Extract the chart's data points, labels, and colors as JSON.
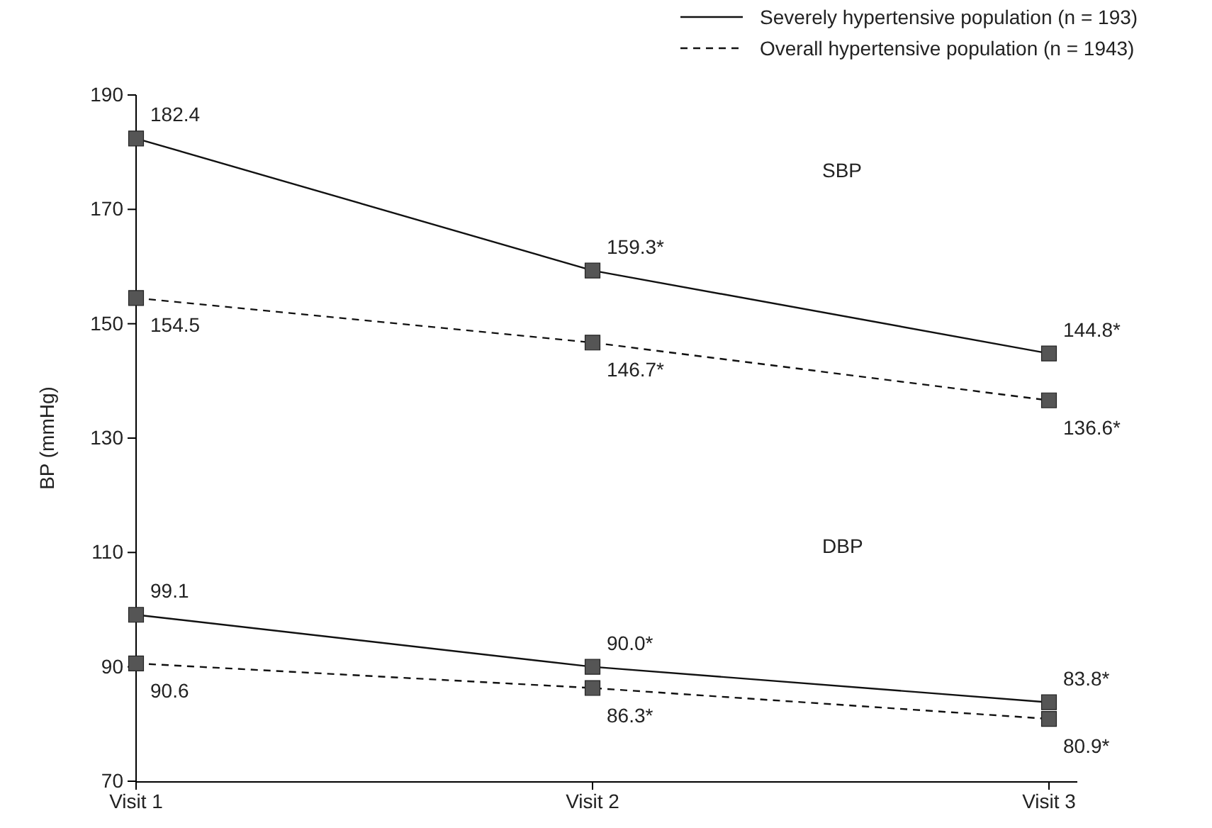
{
  "chart_data": {
    "type": "line",
    "ylabel": "BP (mmHg)",
    "categories": [
      "Visit 1",
      "Visit 2",
      "Visit 3"
    ],
    "ylim": [
      70,
      190
    ],
    "yticks": [
      70,
      90,
      110,
      130,
      150,
      170,
      190
    ],
    "series": [
      {
        "name": "Severely hypertensive population (n = 193)",
        "color": "#555555",
        "line_style": "solid",
        "values": [
          182.4,
          159.3,
          144.8
        ],
        "value_labels": [
          "182.4",
          "159.3*",
          "144.8*"
        ]
      },
      {
        "name": "Overall hypertensive population (n = 1943)",
        "color": "#555555",
        "line_style": "dashed",
        "values": [
          154.5,
          146.7,
          136.6
        ],
        "value_labels": [
          "154.5",
          "146.7*",
          "136.6*"
        ]
      },
      {
        "color": "#555555",
        "line_style": "solid",
        "values": [
          99.1,
          90.0,
          83.8
        ],
        "value_labels": [
          "99.1",
          "90.0*",
          "83.8*"
        ]
      },
      {
        "color": "#555555",
        "line_style": "dashed",
        "values": [
          90.6,
          86.3,
          80.9
        ],
        "value_labels": [
          "90.6",
          "86.3*",
          "80.9*"
        ]
      }
    ],
    "annotations": [
      "SBP",
      "DBP"
    ],
    "marker": "square",
    "legend": "top right",
    "grid": false
  }
}
